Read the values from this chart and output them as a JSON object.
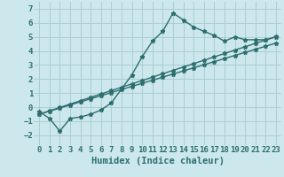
{
  "title": "",
  "xlabel": "Humidex (Indice chaleur)",
  "bg_color": "#cce8ec",
  "grid_color": "#aacdd4",
  "line_color": "#2d6e6e",
  "xlim": [
    -0.5,
    23.5
  ],
  "ylim": [
    -2.7,
    7.5
  ],
  "xticks": [
    0,
    1,
    2,
    3,
    4,
    5,
    6,
    7,
    8,
    9,
    10,
    11,
    12,
    13,
    14,
    15,
    16,
    17,
    18,
    19,
    20,
    21,
    22,
    23
  ],
  "yticks": [
    -2,
    -1,
    0,
    1,
    2,
    3,
    4,
    5,
    6,
    7
  ],
  "line1_x": [
    0,
    1,
    2,
    3,
    4,
    5,
    6,
    7,
    8,
    9,
    10,
    11,
    12,
    13,
    14,
    15,
    16,
    17,
    18,
    19,
    20,
    21,
    22,
    23
  ],
  "line1_y": [
    -0.3,
    -0.8,
    -1.7,
    -0.8,
    -0.7,
    -0.5,
    -0.2,
    0.3,
    1.3,
    2.3,
    3.6,
    4.7,
    5.4,
    6.7,
    6.2,
    5.7,
    5.4,
    5.1,
    4.7,
    5.0,
    4.8,
    4.8,
    4.8,
    5.0
  ],
  "line2_x": [
    0,
    1,
    2,
    3,
    4,
    5,
    6,
    7,
    8,
    9,
    10,
    11,
    12,
    13,
    14,
    15,
    16,
    17,
    18,
    19,
    20,
    21,
    22,
    23
  ],
  "line2_y": [
    -0.5,
    -0.28,
    -0.06,
    0.16,
    0.38,
    0.6,
    0.82,
    1.04,
    1.26,
    1.48,
    1.7,
    1.92,
    2.14,
    2.36,
    2.58,
    2.8,
    3.02,
    3.24,
    3.46,
    3.68,
    3.9,
    4.12,
    4.34,
    4.56
  ],
  "line3_x": [
    0,
    1,
    2,
    3,
    4,
    5,
    6,
    7,
    8,
    9,
    10,
    11,
    12,
    13,
    14,
    15,
    16,
    17,
    18,
    19,
    20,
    21,
    22,
    23
  ],
  "line3_y": [
    -0.5,
    -0.26,
    -0.02,
    0.22,
    0.46,
    0.7,
    0.94,
    1.18,
    1.42,
    1.66,
    1.9,
    2.14,
    2.38,
    2.62,
    2.86,
    3.1,
    3.34,
    3.58,
    3.82,
    4.06,
    4.3,
    4.54,
    4.78,
    5.02
  ],
  "markersize": 3.5,
  "linewidth": 1.0,
  "tick_fontsize": 6.5,
  "xlabel_fontsize": 7.5
}
